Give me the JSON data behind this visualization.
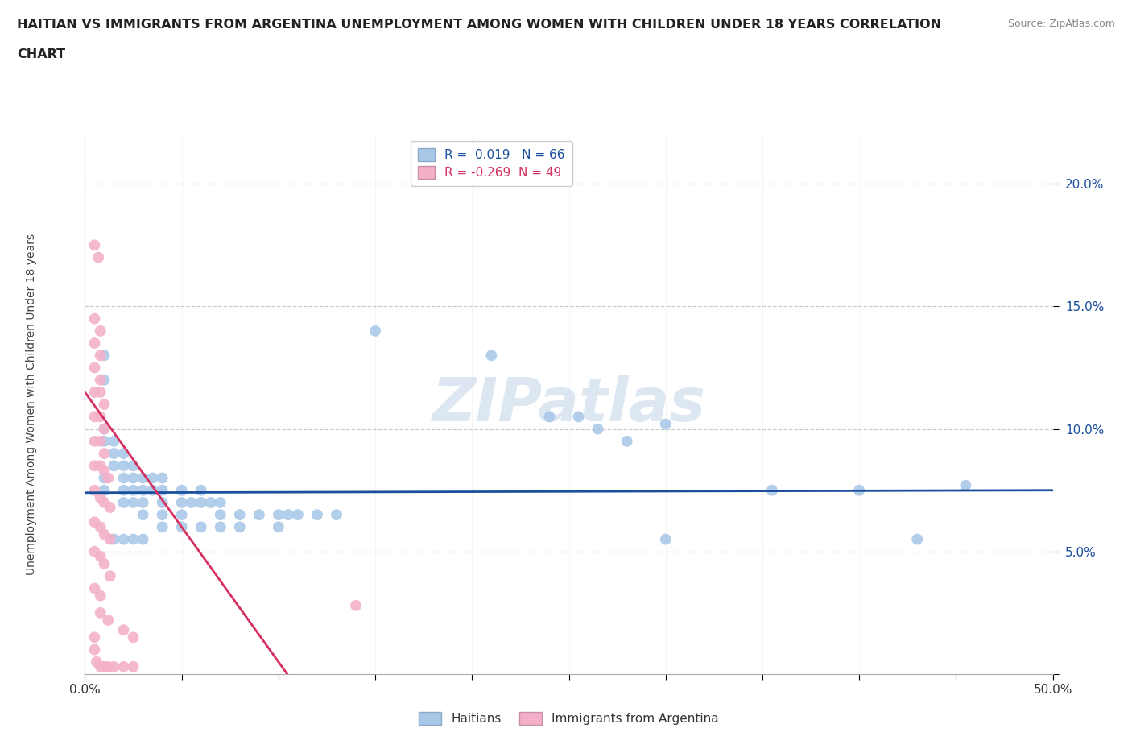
{
  "title_line1": "HAITIAN VS IMMIGRANTS FROM ARGENTINA UNEMPLOYMENT AMONG WOMEN WITH CHILDREN UNDER 18 YEARS CORRELATION",
  "title_line2": "CHART",
  "source": "Source: ZipAtlas.com",
  "ylabel": "Unemployment Among Women with Children Under 18 years",
  "xlim": [
    0.0,
    0.5
  ],
  "ylim": [
    0.0,
    0.22
  ],
  "xtick_positions": [
    0.0,
    0.05,
    0.1,
    0.15,
    0.2,
    0.25,
    0.3,
    0.35,
    0.4,
    0.45,
    0.5
  ],
  "ytick_positions": [
    0.0,
    0.05,
    0.1,
    0.15,
    0.2
  ],
  "ytick_labels": [
    "",
    "5.0%",
    "10.0%",
    "15.0%",
    "20.0%"
  ],
  "grid_color": "#cccccc",
  "background_color": "#ffffff",
  "haitian_color": "#a8c8e8",
  "argentina_color": "#f4b0c8",
  "haitian_line_color": "#1a4f9c",
  "argentina_line_color": "#d63060",
  "haitian_R_text": "0.019",
  "haitian_N_text": "66",
  "argentina_R_text": "-0.269",
  "argentina_N_text": "49",
  "watermark": "ZIPatlas",
  "haitian_line_intercept": 0.074,
  "haitian_line_slope": 0.002,
  "argentina_line_intercept": 0.115,
  "argentina_line_slope": -1.1,
  "argentina_line_xmax_solid": 0.145,
  "haitian_points": [
    [
      0.01,
      0.08
    ],
    [
      0.01,
      0.075
    ],
    [
      0.01,
      0.1
    ],
    [
      0.01,
      0.095
    ],
    [
      0.01,
      0.12
    ],
    [
      0.01,
      0.13
    ],
    [
      0.015,
      0.095
    ],
    [
      0.015,
      0.09
    ],
    [
      0.015,
      0.085
    ],
    [
      0.02,
      0.09
    ],
    [
      0.02,
      0.085
    ],
    [
      0.02,
      0.08
    ],
    [
      0.02,
      0.075
    ],
    [
      0.02,
      0.07
    ],
    [
      0.025,
      0.085
    ],
    [
      0.025,
      0.08
    ],
    [
      0.025,
      0.075
    ],
    [
      0.025,
      0.07
    ],
    [
      0.03,
      0.08
    ],
    [
      0.03,
      0.075
    ],
    [
      0.03,
      0.07
    ],
    [
      0.03,
      0.065
    ],
    [
      0.035,
      0.08
    ],
    [
      0.035,
      0.075
    ],
    [
      0.04,
      0.08
    ],
    [
      0.04,
      0.075
    ],
    [
      0.04,
      0.07
    ],
    [
      0.04,
      0.065
    ],
    [
      0.05,
      0.075
    ],
    [
      0.05,
      0.07
    ],
    [
      0.05,
      0.065
    ],
    [
      0.055,
      0.07
    ],
    [
      0.06,
      0.075
    ],
    [
      0.06,
      0.07
    ],
    [
      0.065,
      0.07
    ],
    [
      0.07,
      0.07
    ],
    [
      0.07,
      0.065
    ],
    [
      0.08,
      0.065
    ],
    [
      0.08,
      0.06
    ],
    [
      0.09,
      0.065
    ],
    [
      0.1,
      0.065
    ],
    [
      0.1,
      0.06
    ],
    [
      0.105,
      0.065
    ],
    [
      0.11,
      0.065
    ],
    [
      0.12,
      0.065
    ],
    [
      0.13,
      0.065
    ],
    [
      0.015,
      0.055
    ],
    [
      0.02,
      0.055
    ],
    [
      0.025,
      0.055
    ],
    [
      0.03,
      0.055
    ],
    [
      0.04,
      0.06
    ],
    [
      0.05,
      0.06
    ],
    [
      0.06,
      0.06
    ],
    [
      0.07,
      0.06
    ],
    [
      0.15,
      0.14
    ],
    [
      0.21,
      0.13
    ],
    [
      0.24,
      0.105
    ],
    [
      0.255,
      0.105
    ],
    [
      0.265,
      0.1
    ],
    [
      0.28,
      0.095
    ],
    [
      0.3,
      0.102
    ],
    [
      0.355,
      0.075
    ],
    [
      0.4,
      0.075
    ],
    [
      0.43,
      0.055
    ],
    [
      0.455,
      0.077
    ],
    [
      0.3,
      0.055
    ]
  ],
  "argentina_points": [
    [
      0.005,
      0.175
    ],
    [
      0.007,
      0.17
    ],
    [
      0.005,
      0.145
    ],
    [
      0.008,
      0.14
    ],
    [
      0.005,
      0.135
    ],
    [
      0.008,
      0.13
    ],
    [
      0.005,
      0.125
    ],
    [
      0.008,
      0.12
    ],
    [
      0.005,
      0.115
    ],
    [
      0.008,
      0.115
    ],
    [
      0.01,
      0.11
    ],
    [
      0.005,
      0.105
    ],
    [
      0.008,
      0.105
    ],
    [
      0.01,
      0.1
    ],
    [
      0.005,
      0.095
    ],
    [
      0.008,
      0.095
    ],
    [
      0.01,
      0.09
    ],
    [
      0.005,
      0.085
    ],
    [
      0.008,
      0.085
    ],
    [
      0.01,
      0.083
    ],
    [
      0.012,
      0.08
    ],
    [
      0.005,
      0.075
    ],
    [
      0.008,
      0.072
    ],
    [
      0.01,
      0.07
    ],
    [
      0.013,
      0.068
    ],
    [
      0.005,
      0.062
    ],
    [
      0.008,
      0.06
    ],
    [
      0.01,
      0.057
    ],
    [
      0.013,
      0.055
    ],
    [
      0.005,
      0.05
    ],
    [
      0.008,
      0.048
    ],
    [
      0.01,
      0.045
    ],
    [
      0.013,
      0.04
    ],
    [
      0.005,
      0.035
    ],
    [
      0.008,
      0.032
    ],
    [
      0.008,
      0.025
    ],
    [
      0.012,
      0.022
    ],
    [
      0.005,
      0.015
    ],
    [
      0.005,
      0.01
    ],
    [
      0.006,
      0.005
    ],
    [
      0.008,
      0.003
    ],
    [
      0.01,
      0.003
    ],
    [
      0.012,
      0.003
    ],
    [
      0.015,
      0.003
    ],
    [
      0.02,
      0.003
    ],
    [
      0.025,
      0.003
    ],
    [
      0.14,
      0.028
    ],
    [
      0.02,
      0.018
    ],
    [
      0.025,
      0.015
    ]
  ]
}
